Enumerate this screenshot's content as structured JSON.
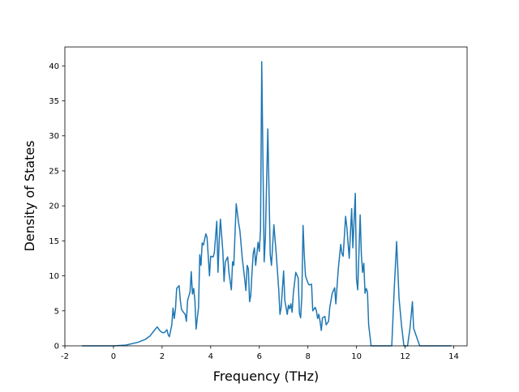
{
  "chart_data": {
    "type": "line",
    "x_label": "Frequency (THz)",
    "y_label": "Density of States",
    "x": [
      -1.3,
      0,
      0.5,
      1.0,
      1.3,
      1.5,
      1.7,
      1.8,
      1.9,
      2.0,
      2.1,
      2.2,
      2.25,
      2.3,
      2.4,
      2.45,
      2.5,
      2.55,
      2.6,
      2.7,
      2.75,
      2.8,
      2.9,
      2.95,
      3.0,
      3.05,
      3.15,
      3.2,
      3.25,
      3.3,
      3.35,
      3.4,
      3.45,
      3.5,
      3.55,
      3.6,
      3.65,
      3.7,
      3.8,
      3.85,
      3.95,
      4.0,
      4.1,
      4.15,
      4.25,
      4.3,
      4.35,
      4.4,
      4.5,
      4.55,
      4.6,
      4.7,
      4.75,
      4.85,
      4.9,
      4.95,
      5.05,
      5.15,
      5.2,
      5.3,
      5.4,
      5.45,
      5.5,
      5.55,
      5.6,
      5.65,
      5.7,
      5.75,
      5.8,
      5.85,
      5.95,
      6.0,
      6.05,
      6.1,
      6.2,
      6.25,
      6.35,
      6.45,
      6.5,
      6.6,
      6.7,
      6.8,
      6.85,
      6.9,
      7.0,
      7.05,
      7.15,
      7.2,
      7.25,
      7.3,
      7.35,
      7.4,
      7.5,
      7.6,
      7.65,
      7.7,
      7.75,
      7.8,
      7.85,
      7.9,
      8.0,
      8.05,
      8.15,
      8.2,
      8.3,
      8.35,
      8.4,
      8.45,
      8.5,
      8.55,
      8.6,
      8.7,
      8.75,
      8.85,
      8.9,
      9.0,
      9.1,
      9.15,
      9.25,
      9.35,
      9.4,
      9.45,
      9.55,
      9.6,
      9.7,
      9.8,
      9.85,
      9.95,
      10.0,
      10.05,
      10.15,
      10.2,
      10.25,
      10.3,
      10.35,
      10.4,
      10.45,
      10.5,
      10.6,
      11.45,
      11.55,
      11.65,
      11.75,
      11.85,
      11.95,
      12.1,
      12.2,
      12.3,
      12.35,
      12.5,
      12.6,
      13.9
    ],
    "values": [
      0,
      0,
      0.1,
      0.5,
      0.9,
      1.4,
      2.3,
      2.7,
      2.2,
      1.9,
      1.9,
      2.3,
      1.6,
      1.3,
      3.0,
      5.4,
      3.9,
      5.2,
      8.2,
      8.6,
      6.5,
      5.2,
      4.7,
      4.5,
      3.5,
      6.5,
      7.7,
      10.6,
      7.4,
      8.2,
      6.5,
      2.4,
      4,
      5.5,
      13,
      11.5,
      14.7,
      14.4,
      16,
      15.5,
      10,
      12.8,
      12.7,
      13.3,
      17.8,
      10.5,
      15,
      18.1,
      13.5,
      9.2,
      12,
      12.7,
      10.5,
      8,
      12,
      11.5,
      20.3,
      17.5,
      16.5,
      12.5,
      9.5,
      7.9,
      11.5,
      11,
      6.3,
      7.2,
      10.5,
      13.2,
      14,
      11.5,
      14.8,
      13.5,
      16.5,
      40.6,
      12,
      15.5,
      31,
      13,
      11.5,
      17.3,
      13,
      8,
      4.5,
      5.5,
      10.7,
      6.5,
      4.5,
      5.8,
      5.3,
      6,
      4.8,
      7.5,
      10.5,
      9.7,
      4.7,
      4,
      7,
      17.2,
      13,
      10,
      9,
      8.7,
      8.8,
      5,
      5.5,
      5,
      3.9,
      4.5,
      3.5,
      2.2,
      4,
      4.2,
      3,
      3.5,
      5.5,
      7.5,
      8.3,
      6,
      11,
      14.5,
      13.2,
      12.8,
      18.5,
      17,
      12.5,
      19.6,
      14,
      21.8,
      9.5,
      8,
      18.7,
      13,
      10.5,
      11.8,
      7.5,
      8.2,
      7.7,
      3,
      0,
      0,
      8,
      14.9,
      6.8,
      3,
      0,
      0,
      2.5,
      6.3,
      2.5,
      1,
      0,
      0
    ],
    "color": "#1f77b4",
    "xlim": [
      -2,
      14.55
    ],
    "ylim": [
      0,
      42.7
    ],
    "xticks": [
      -2,
      0,
      2,
      4,
      6,
      8,
      10,
      12,
      14
    ],
    "yticks": [
      0,
      5,
      10,
      15,
      20,
      25,
      30,
      35,
      40
    ]
  }
}
